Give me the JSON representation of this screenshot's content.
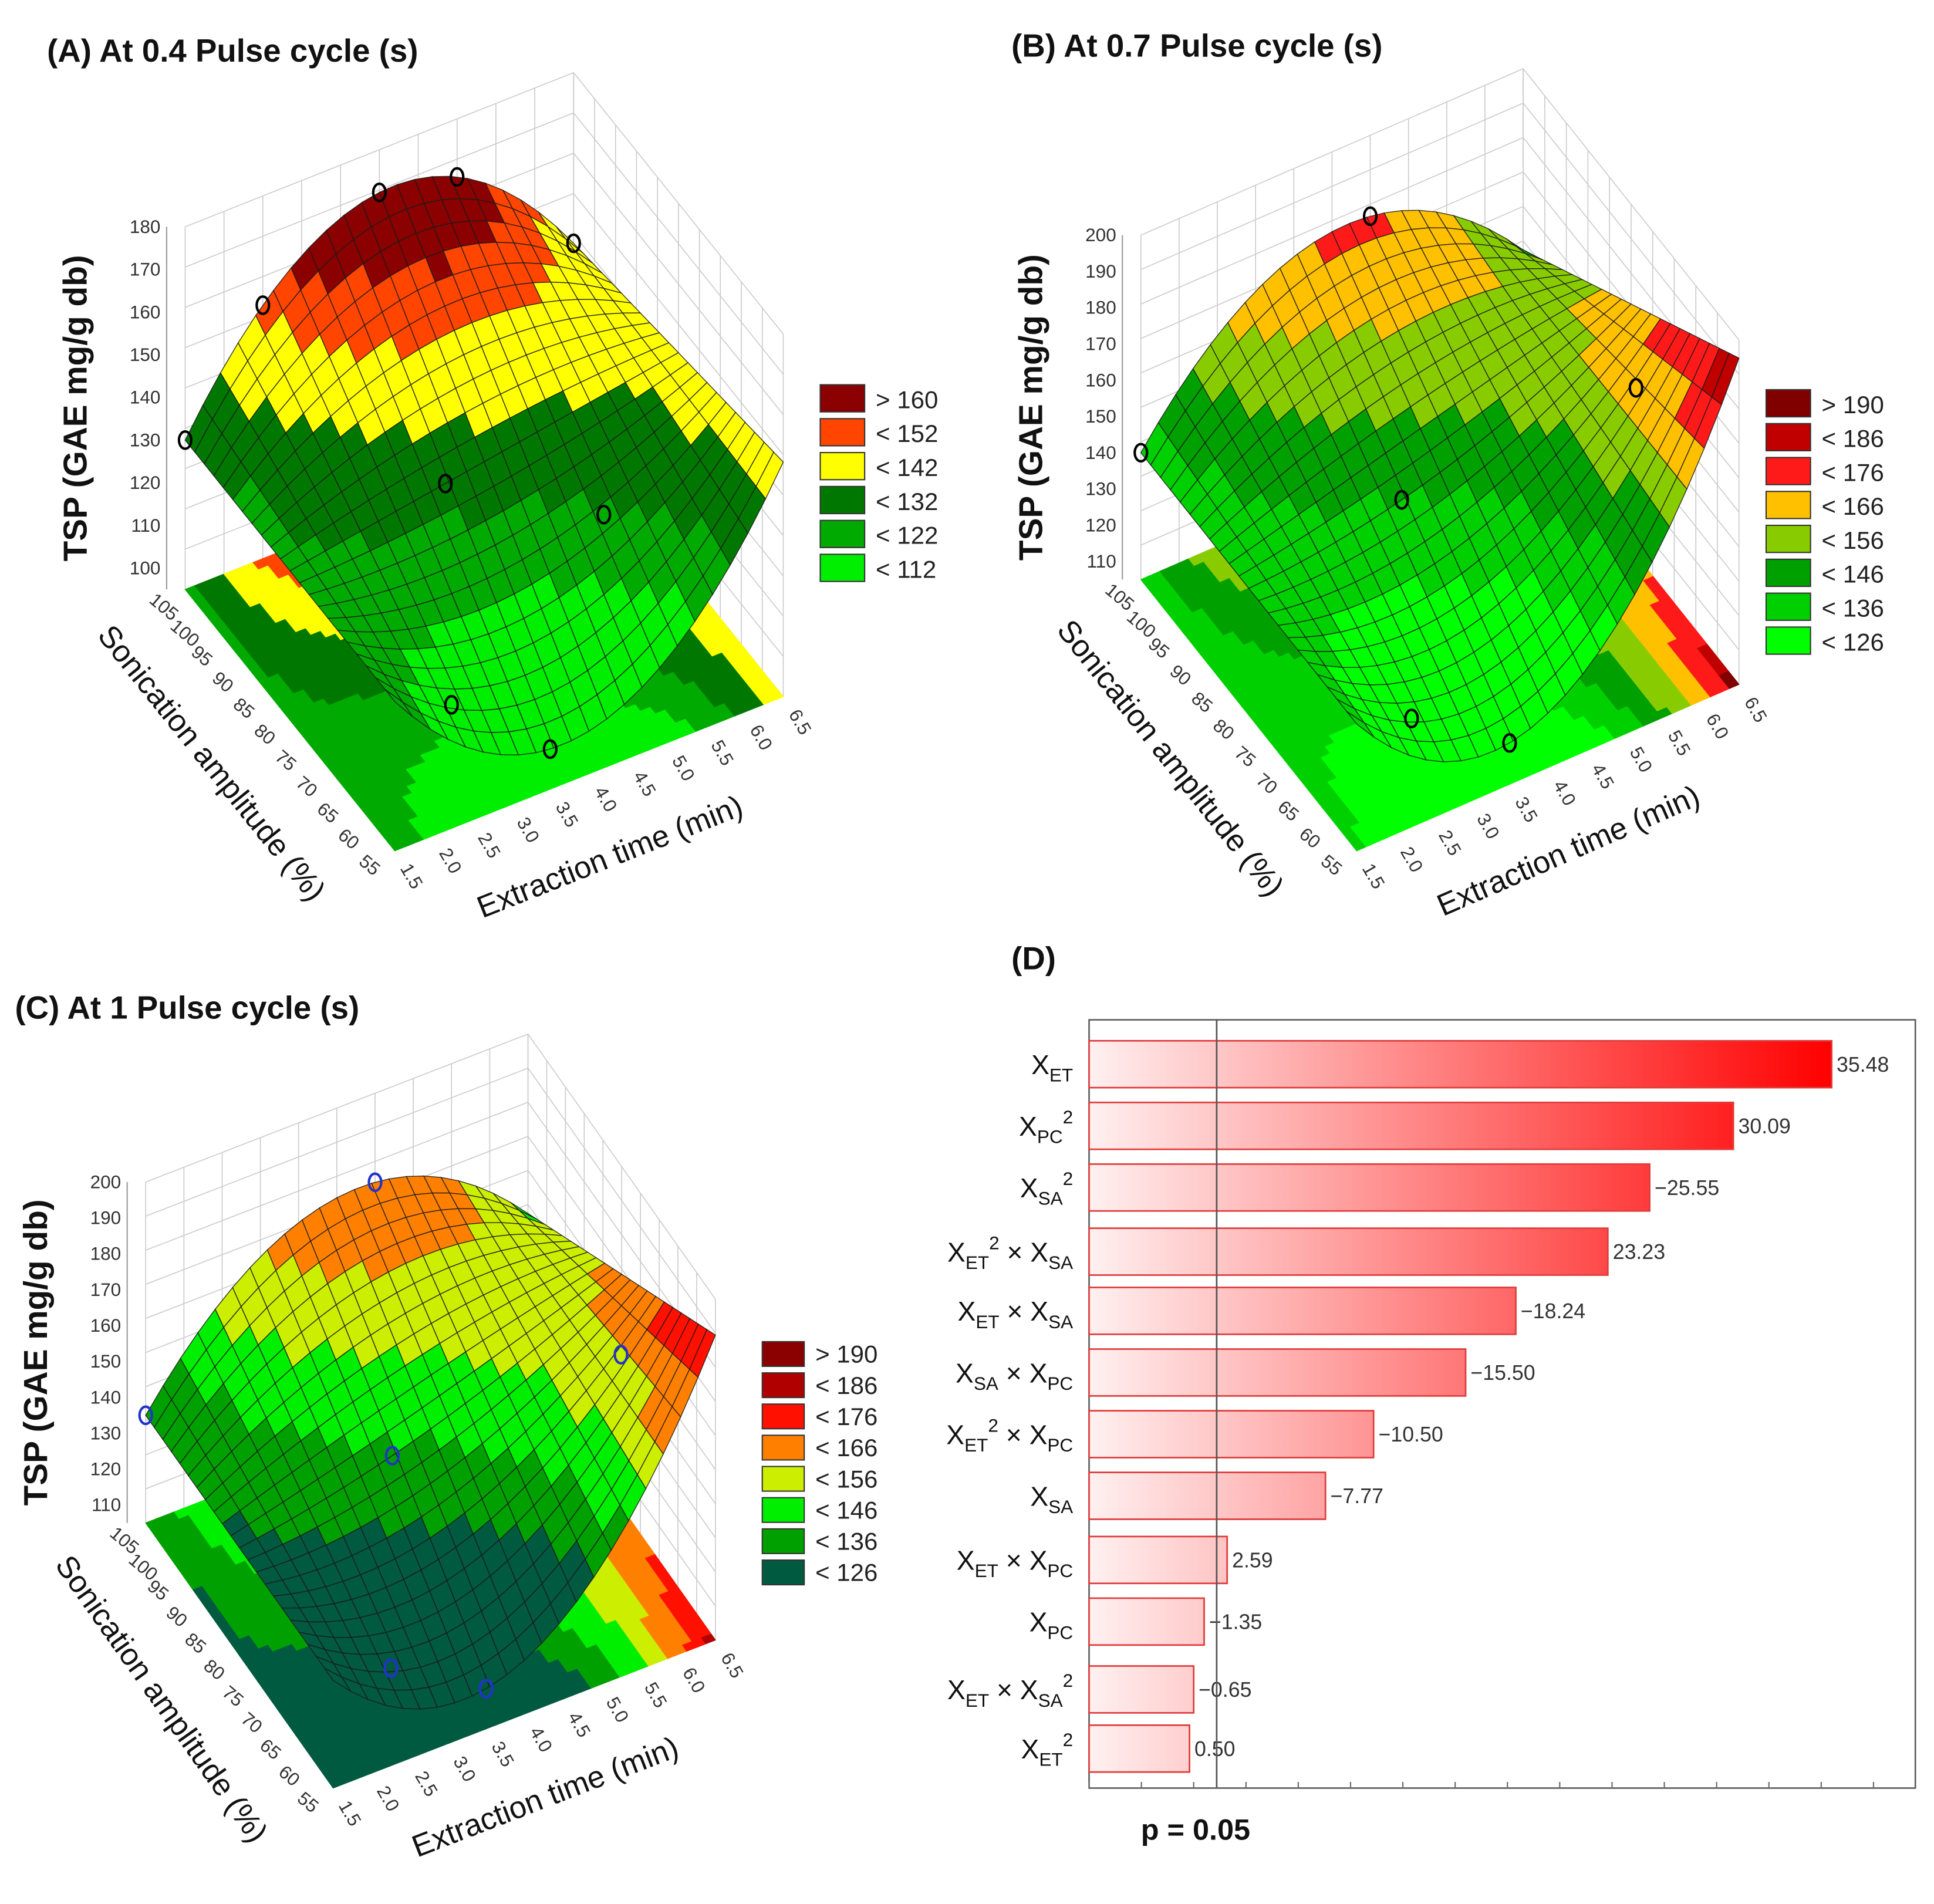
{
  "chart_data": [
    {
      "type": "surface3d",
      "panel": "A",
      "title": "(A) At 0.4 Pulse cycle (s)",
      "zlabel": "TSP (GAE mg/g db)",
      "xlabel": "Extraction time (min)",
      "ylabel": "Sonication amplitude (%)",
      "x_ticks": [
        "1.5",
        "2.0",
        "2.5",
        "3.0",
        "3.5",
        "4.0",
        "4.5",
        "5.0",
        "5.5",
        "6.0",
        "6.5"
      ],
      "y_ticks": [
        "55",
        "60",
        "65",
        "70",
        "75",
        "80",
        "85",
        "90",
        "95",
        "100",
        "105"
      ],
      "z_ticks": [
        "100",
        "110",
        "120",
        "130",
        "140",
        "150",
        "160",
        "170",
        "180"
      ],
      "xlim": [
        1.5,
        6.5
      ],
      "ylim": [
        55,
        105
      ],
      "zlim": [
        95,
        180
      ],
      "legend": [
        {
          "label": "> 160",
          "threshold": 160,
          "color": "#8b0000"
        },
        {
          "label": "< 152",
          "threshold": 152,
          "color": "#ff4500"
        },
        {
          "label": "< 142",
          "threshold": 142,
          "color": "#ffff00"
        },
        {
          "label": "< 132",
          "threshold": 132,
          "color": "#007800"
        },
        {
          "label": "< 122",
          "threshold": 122,
          "color": "#00aa00"
        },
        {
          "label": "< 112",
          "threshold": 112,
          "color": "#00ee00"
        }
      ],
      "surface_estimates": {
        "mid_back": 170,
        "mid_front": 105,
        "right_front": 150,
        "right_back": 140,
        "left_back": 130,
        "left_front": 130
      },
      "design_points": [
        [
          1.5,
          105
        ],
        [
          2.5,
          105
        ],
        [
          4.0,
          105
        ],
        [
          5.0,
          105
        ],
        [
          6.5,
          105
        ],
        [
          3.5,
          80
        ],
        [
          2.5,
          60
        ],
        [
          3.5,
          55
        ],
        [
          5.0,
          70
        ]
      ]
    },
    {
      "type": "surface3d",
      "panel": "B",
      "title": "(B) At 0.7 Pulse cycle (s)",
      "zlabel": "TSP (GAE mg/g db)",
      "xlabel": "Extraction time (min)",
      "ylabel": "Sonication amplitude (%)",
      "x_ticks": [
        "1.5",
        "2.0",
        "2.5",
        "3.0",
        "3.5",
        "4.0",
        "4.5",
        "5.0",
        "5.5",
        "6.0",
        "6.5"
      ],
      "y_ticks": [
        "55",
        "60",
        "65",
        "70",
        "75",
        "80",
        "85",
        "90",
        "95",
        "100",
        "105"
      ],
      "z_ticks": [
        "110",
        "120",
        "130",
        "140",
        "150",
        "160",
        "170",
        "180",
        "190",
        "200"
      ],
      "xlim": [
        1.5,
        6.5
      ],
      "ylim": [
        55,
        105
      ],
      "zlim": [
        105,
        200
      ],
      "legend": [
        {
          "label": "> 190",
          "threshold": 190,
          "color": "#800000"
        },
        {
          "label": "< 186",
          "threshold": 186,
          "color": "#c00000"
        },
        {
          "label": "< 176",
          "threshold": 176,
          "color": "#ff1a1a"
        },
        {
          "label": "< 166",
          "threshold": 166,
          "color": "#ffc000"
        },
        {
          "label": "< 156",
          "threshold": 156,
          "color": "#88cc00"
        },
        {
          "label": "< 146",
          "threshold": 146,
          "color": "#00a000"
        },
        {
          "label": "< 136",
          "threshold": 136,
          "color": "#00d000"
        },
        {
          "label": "< 126",
          "threshold": 126,
          "color": "#00ff00"
        }
      ],
      "surface_estimates": {
        "mid_back": 178,
        "mid_front": 120,
        "right_front": 195,
        "right_back": 150,
        "left_back": 140,
        "left_front": 140
      },
      "design_points": [
        [
          1.5,
          105
        ],
        [
          4.5,
          105
        ],
        [
          3.5,
          80
        ],
        [
          2.5,
          60
        ],
        [
          3.5,
          55
        ],
        [
          6.0,
          70
        ]
      ]
    },
    {
      "type": "surface3d",
      "panel": "C",
      "title": "(C) At 1 Pulse cycle (s)",
      "zlabel": "TSP (GAE mg/g db)",
      "xlabel": "Extraction time (min)",
      "ylabel": "Sonication amplitude (%)",
      "x_ticks": [
        "1.5",
        "2.0",
        "2.5",
        "3.0",
        "3.5",
        "4.0",
        "4.5",
        "5.0",
        "5.5",
        "6.0",
        "6.5"
      ],
      "y_ticks": [
        "55",
        "60",
        "65",
        "70",
        "75",
        "80",
        "85",
        "90",
        "95",
        "100",
        "105"
      ],
      "z_ticks": [
        "110",
        "120",
        "130",
        "140",
        "150",
        "160",
        "170",
        "180",
        "190",
        "200"
      ],
      "xlim": [
        1.5,
        6.5
      ],
      "ylim": [
        55,
        105
      ],
      "zlim": [
        105,
        200
      ],
      "legend": [
        {
          "label": "> 190",
          "threshold": 190,
          "color": "#8b0000"
        },
        {
          "label": "< 186",
          "threshold": 186,
          "color": "#b00000"
        },
        {
          "label": "< 176",
          "threshold": 176,
          "color": "#ff1000"
        },
        {
          "label": "< 166",
          "threshold": 166,
          "color": "#ff8000"
        },
        {
          "label": "< 156",
          "threshold": 156,
          "color": "#ccee00"
        },
        {
          "label": "< 146",
          "threshold": 146,
          "color": "#00ee00"
        },
        {
          "label": "< 136",
          "threshold": 136,
          "color": "#00a000"
        },
        {
          "label": "< 126",
          "threshold": 126,
          "color": "#005a40"
        }
      ],
      "surface_estimates": {
        "mid_back": 175,
        "mid_front": 120,
        "right_front": 190,
        "right_back": 150,
        "left_back": 135,
        "left_front": 135
      },
      "design_points": [
        [
          1.5,
          105
        ],
        [
          4.5,
          105
        ],
        [
          3.5,
          80
        ],
        [
          2.5,
          60
        ],
        [
          3.5,
          55
        ],
        [
          6.0,
          70
        ]
      ]
    },
    {
      "type": "bar",
      "orientation": "horizontal",
      "panel": "D",
      "title": "(D)",
      "threshold_label": "p = 0.05",
      "threshold_value": 6.1,
      "xlim": [
        0,
        39.5
      ],
      "bars": [
        {
          "label": [
            {
              "t": "X"
            },
            {
              "sub": "ET"
            }
          ],
          "value_label": "35.48",
          "effect": 35.5
        },
        {
          "label": [
            {
              "t": "X"
            },
            {
              "sub": "PC"
            },
            {
              "sup": "2"
            }
          ],
          "value_label": "30.09",
          "effect": 30.8
        },
        {
          "label": [
            {
              "t": "X"
            },
            {
              "sub": "SA"
            },
            {
              "sup": "2"
            }
          ],
          "value_label": "−25.55",
          "effect": 26.8
        },
        {
          "label": [
            {
              "t": "X"
            },
            {
              "sub": "ET"
            },
            {
              "sup": "2"
            },
            {
              "t": " × X"
            },
            {
              "sub": "SA"
            }
          ],
          "value_label": "23.23",
          "effect": 24.8
        },
        {
          "label": [
            {
              "t": "X"
            },
            {
              "sub": "ET"
            },
            {
              "t": " × X"
            },
            {
              "sub": "SA"
            }
          ],
          "value_label": "−18.24",
          "effect": 20.4
        },
        {
          "label": [
            {
              "t": "X"
            },
            {
              "sub": "SA"
            },
            {
              "t": " × X"
            },
            {
              "sub": "PC"
            }
          ],
          "value_label": "−15.50",
          "effect": 18.0
        },
        {
          "label": [
            {
              "t": "X"
            },
            {
              "sub": "ET"
            },
            {
              "sup": "2"
            },
            {
              "t": " × X"
            },
            {
              "sub": "PC"
            }
          ],
          "value_label": "−10.50",
          "effect": 13.6
        },
        {
          "label": [
            {
              "t": "X"
            },
            {
              "sub": "SA"
            }
          ],
          "value_label": "−7.77",
          "effect": 11.3
        },
        {
          "label": [
            {
              "t": "X"
            },
            {
              "sub": "ET"
            },
            {
              "t": " × X"
            },
            {
              "sub": "PC"
            }
          ],
          "value_label": "2.59",
          "effect": 6.6
        },
        {
          "label": [
            {
              "t": "X"
            },
            {
              "sub": "PC"
            }
          ],
          "value_label": "−1.35",
          "effect": 5.5
        },
        {
          "label": [
            {
              "t": "X"
            },
            {
              "sub": "ET"
            },
            {
              "t": " × X"
            },
            {
              "sub": "SA"
            },
            {
              "sup": "2"
            }
          ],
          "value_label": "−0.65",
          "effect": 5.0
        },
        {
          "label": [
            {
              "t": "X"
            },
            {
              "sub": "ET"
            },
            {
              "sup": "2"
            }
          ],
          "value_label": "0.50",
          "effect": 4.8
        }
      ],
      "bar_color_light": "#fff0f0",
      "bar_color_dark": "#ff0000"
    }
  ]
}
